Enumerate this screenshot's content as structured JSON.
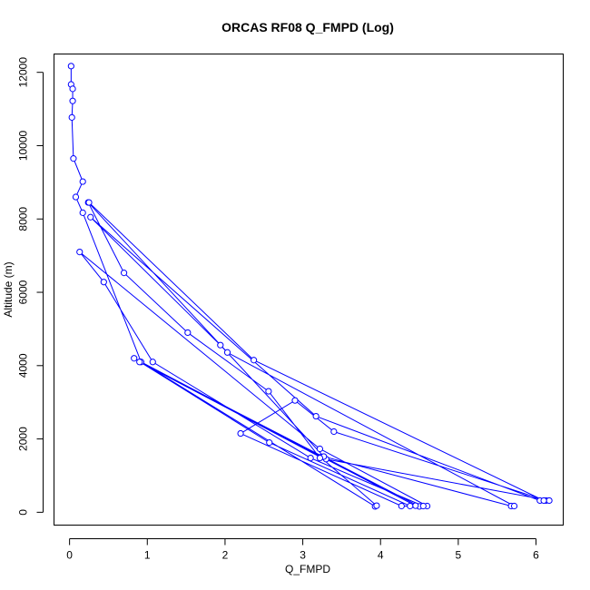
{
  "chart_data": {
    "type": "line",
    "title": "ORCAS RF08 Q_FMPD (Log)",
    "xlabel": "Q_FMPD",
    "ylabel": "Altitude (m)",
    "xlim": [
      -0.2,
      6.35
    ],
    "ylim": [
      -350,
      12500
    ],
    "x_ticks": [
      0,
      1,
      2,
      3,
      4,
      5,
      6
    ],
    "y_ticks": [
      0,
      2000,
      4000,
      6000,
      8000,
      10000,
      12000
    ],
    "x_tick_labels": [
      "0",
      "1",
      "2",
      "3",
      "4",
      "5",
      "6"
    ],
    "y_tick_labels": [
      "0",
      "2000",
      "4000",
      "6000",
      "8000",
      "10000",
      "12000"
    ],
    "grid": false,
    "legend": "none",
    "series": [
      {
        "color": "#0000ff",
        "marker": "open-circle",
        "x": [
          0.02,
          0.02,
          0.04,
          0.04,
          0.03,
          0.05,
          0.17,
          0.08,
          0.17,
          0.92,
          3.93,
          3.95,
          3.23,
          0.9,
          4.5,
          4.45,
          3.3,
          0.83,
          2.57,
          4.38,
          4.6,
          3.22,
          0.13,
          0.44,
          1.07,
          3.1,
          4.55,
          4.27,
          2.2,
          2.9,
          3.4,
          6.13,
          6.05,
          3.17,
          0.27,
          1.94,
          3.27,
          5.68,
          5.72,
          2.03,
          0.24,
          0.7,
          1.52,
          2.56,
          3.22,
          6.17,
          6.1,
          2.37,
          0.25
        ],
        "y": [
          12170,
          11670,
          11550,
          11220,
          10770,
          9650,
          9020,
          8600,
          8170,
          4100,
          160,
          180,
          1500,
          4100,
          160,
          180,
          1450,
          4200,
          1900,
          170,
          170,
          1730,
          7100,
          6280,
          4100,
          1480,
          170,
          170,
          2150,
          3050,
          2200,
          320,
          320,
          2620,
          8050,
          4560,
          1520,
          170,
          170,
          4360,
          8450,
          6530,
          4900,
          3300,
          1480,
          320,
          320,
          4150,
          8450
        ]
      }
    ]
  }
}
